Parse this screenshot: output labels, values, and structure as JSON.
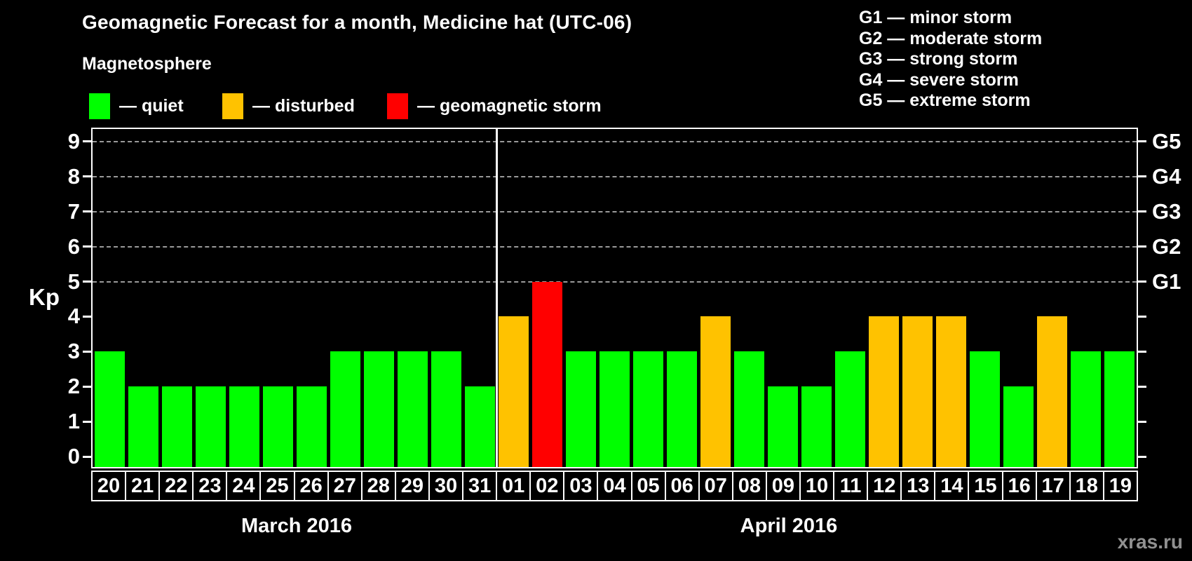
{
  "title": "Geomagnetic Forecast for a month, Medicine hat (UTC-06)",
  "subtitle": "Magnetosphere",
  "legend": {
    "items": [
      {
        "name": "quiet",
        "label": "— quiet",
        "color": "#00ff00"
      },
      {
        "name": "disturbed",
        "label": "— disturbed",
        "color": "#ffc200"
      },
      {
        "name": "storm",
        "label": "— geomagnetic storm",
        "color": "#ff0000"
      }
    ]
  },
  "g_legend": [
    "G1 — minor storm",
    "G2 — moderate storm",
    "G3 — strong storm",
    "G4 — severe storm",
    "G5 — extreme storm"
  ],
  "watermark": "xras.ru",
  "chart_data": {
    "type": "bar",
    "title": "Geomagnetic Forecast for a month, Medicine hat (UTC-06)",
    "ylabel": "Kp",
    "ylim": [
      -0.3,
      9.4
    ],
    "y_ticks": [
      0,
      1,
      2,
      3,
      4,
      5,
      6,
      7,
      8,
      9
    ],
    "gridlines_kp": [
      5,
      6,
      7,
      8,
      9
    ],
    "grid": "dashed horizontal at storm levels only",
    "right_axis": [
      {
        "kp": 5,
        "label": "G1"
      },
      {
        "kp": 6,
        "label": "G2"
      },
      {
        "kp": 7,
        "label": "G3"
      },
      {
        "kp": 8,
        "label": "G4"
      },
      {
        "kp": 9,
        "label": "G5"
      }
    ],
    "status_colors": {
      "quiet": "#00ff00",
      "disturbed": "#ffc200",
      "storm": "#ff0000"
    },
    "months": [
      {
        "label": "March 2016",
        "days": [
          "20",
          "21",
          "22",
          "23",
          "24",
          "25",
          "26",
          "27",
          "28",
          "29",
          "30",
          "31"
        ],
        "values": [
          3,
          2,
          2,
          2,
          2,
          2,
          2,
          3,
          3,
          3,
          3,
          2
        ],
        "status": [
          "quiet",
          "quiet",
          "quiet",
          "quiet",
          "quiet",
          "quiet",
          "quiet",
          "quiet",
          "quiet",
          "quiet",
          "quiet",
          "quiet"
        ]
      },
      {
        "label": "April 2016",
        "days": [
          "01",
          "02",
          "03",
          "04",
          "05",
          "06",
          "07",
          "08",
          "09",
          "10",
          "11",
          "12",
          "13",
          "14",
          "15",
          "16",
          "17",
          "18",
          "19"
        ],
        "values": [
          4,
          5,
          3,
          3,
          3,
          3,
          4,
          3,
          2,
          2,
          3,
          4,
          4,
          4,
          3,
          2,
          4,
          3,
          3
        ],
        "status": [
          "disturbed",
          "storm",
          "quiet",
          "quiet",
          "quiet",
          "quiet",
          "disturbed",
          "quiet",
          "quiet",
          "quiet",
          "quiet",
          "disturbed",
          "disturbed",
          "disturbed",
          "quiet",
          "quiet",
          "disturbed",
          "quiet",
          "quiet"
        ]
      }
    ]
  }
}
